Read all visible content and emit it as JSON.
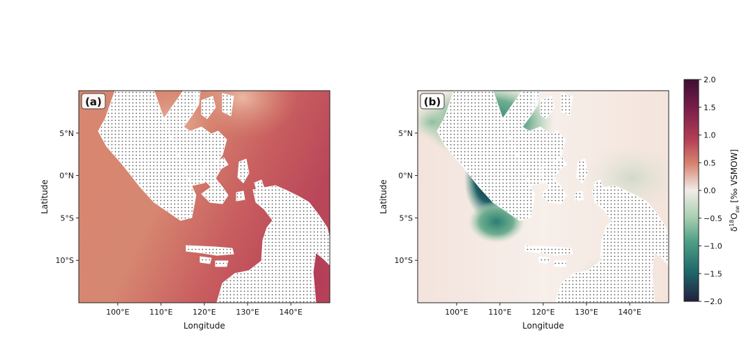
{
  "figure": {
    "panels": [
      {
        "id": "a",
        "panel_label": "(a)",
        "xlabel": "Longitude",
        "ylabel": "Latitude",
        "xticks": [
          100,
          110,
          120,
          130,
          140
        ],
        "xtick_labels": [
          "100°E",
          "110°E",
          "120°E",
          "130°E",
          "140°E"
        ],
        "yticks": [
          5,
          0,
          -5,
          -10
        ],
        "ytick_labels": [
          "5°N",
          "0°N",
          "5°S",
          "10°S"
        ]
      },
      {
        "id": "b",
        "panel_label": "(b)",
        "xlabel": "Longitude",
        "ylabel": "Latitude",
        "xticks": [
          100,
          110,
          120,
          130,
          140
        ],
        "xtick_labels": [
          "100°E",
          "110°E",
          "120°E",
          "130°E",
          "140°E"
        ],
        "yticks": [
          5,
          0,
          -5,
          -10
        ],
        "ytick_labels": [
          "5°N",
          "0°N",
          "5°S",
          "10°S"
        ]
      }
    ],
    "colorbar": {
      "label_parts": [
        "δ",
        "18",
        "O",
        "sw",
        " [‰ VSMOW]"
      ],
      "ticks": [
        2.0,
        1.5,
        1.0,
        0.5,
        0.0,
        -0.5,
        -1.0,
        -1.5,
        -2.0
      ],
      "tick_labels": [
        "2.0",
        "1.5",
        "1.0",
        "0.5",
        "0.0",
        "−0.5",
        "−1.0",
        "−1.5",
        "−2.0"
      ],
      "range": [
        -2.0,
        2.0
      ],
      "colormap": "diverging teal–white–burgundy",
      "colors": [
        "#24213f",
        "#1f6a6d",
        "#4f9f86",
        "#a9cfb0",
        "#f2eeea",
        "#e7b8a1",
        "#d57a68",
        "#a8364f",
        "#4c0f35"
      ]
    }
  },
  "chart_data": {
    "type": "heatmap",
    "variable": "δ18O_sw",
    "units": "‰ VSMOW",
    "x_range": [
      91,
      149
    ],
    "y_range": [
      -15,
      10
    ],
    "clim": [
      -2.0,
      2.0
    ],
    "land_hatched": true,
    "panels": [
      {
        "label": "(a)",
        "field_description_values": {
          "open_ocean_east": 0.9,
          "indian_ocean_west": 0.6,
          "south_china_sea": 0.3,
          "java_sea": 0.6,
          "timor_arafura": 1.0
        }
      },
      {
        "label": "(b)",
        "field_description_values": {
          "open_ocean": 0.05,
          "south_china_sea_north": -1.0,
          "gulf_of_thailand": -2.0,
          "java_sea_west": -1.2,
          "gulf_of_carpentaria": -0.6
        }
      }
    ]
  }
}
